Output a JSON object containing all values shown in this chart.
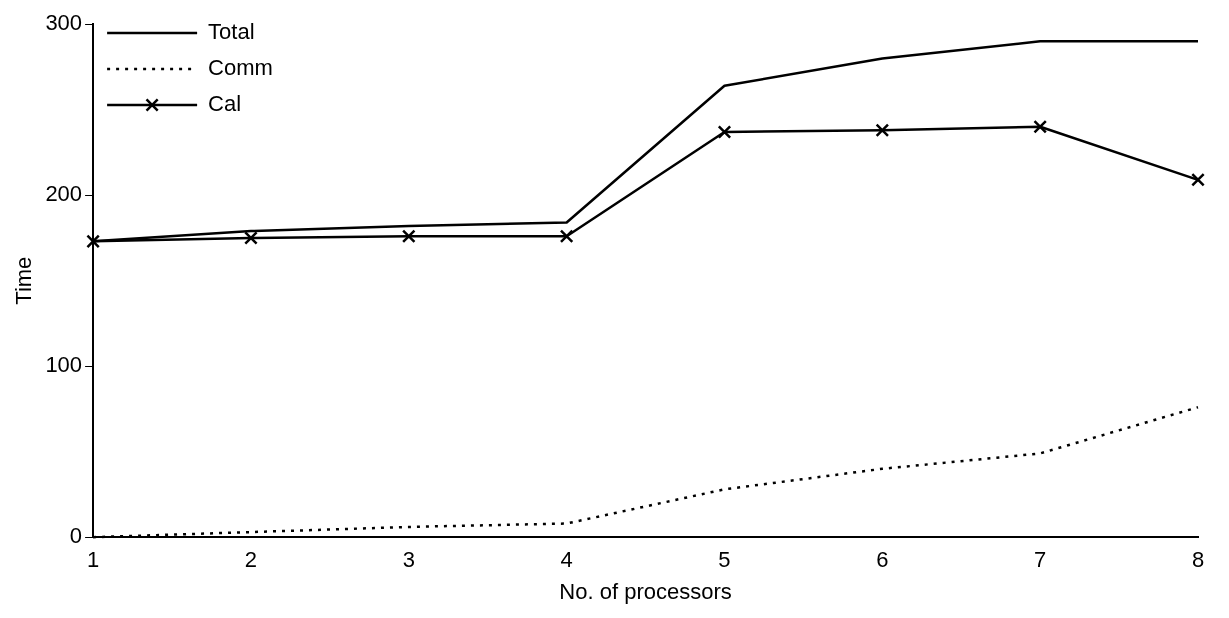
{
  "chart_data": {
    "type": "line",
    "xlabel": "No. of processors",
    "ylabel": "Time",
    "x": [
      1,
      2,
      3,
      4,
      5,
      6,
      7,
      8
    ],
    "xlim": [
      1,
      8
    ],
    "xticks": [
      1,
      2,
      3,
      4,
      5,
      6,
      7,
      8
    ],
    "ylim": [
      0,
      300
    ],
    "yticks": [
      0,
      100,
      200,
      300
    ],
    "grid": false,
    "legend": "top left",
    "series": [
      {
        "name": "Total",
        "color": "#000000",
        "line_style": "solid",
        "marker": "none",
        "values": [
          173,
          179,
          182,
          184,
          264,
          280,
          290,
          290
        ]
      },
      {
        "name": "Comm",
        "color": "#000000",
        "line_style": "dotted",
        "marker": "none",
        "values": [
          0,
          3,
          6,
          8,
          28,
          40,
          49,
          76
        ]
      },
      {
        "name": "Cal",
        "color": "#000000",
        "line_style": "solid",
        "marker": "cross",
        "values": [
          173,
          175,
          176,
          176,
          237,
          238,
          240,
          209
        ]
      }
    ]
  }
}
